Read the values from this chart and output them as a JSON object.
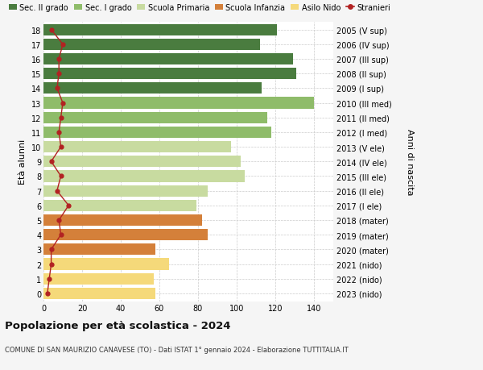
{
  "ages": [
    0,
    1,
    2,
    3,
    4,
    5,
    6,
    7,
    8,
    9,
    10,
    11,
    12,
    13,
    14,
    15,
    16,
    17,
    18
  ],
  "right_labels": [
    "2023 (nido)",
    "2022 (nido)",
    "2021 (nido)",
    "2020 (mater)",
    "2019 (mater)",
    "2018 (mater)",
    "2017 (I ele)",
    "2016 (II ele)",
    "2015 (III ele)",
    "2014 (IV ele)",
    "2013 (V ele)",
    "2012 (I med)",
    "2011 (II med)",
    "2010 (III med)",
    "2009 (I sup)",
    "2008 (II sup)",
    "2007 (III sup)",
    "2006 (IV sup)",
    "2005 (V sup)"
  ],
  "bar_values": [
    58,
    57,
    65,
    58,
    85,
    82,
    79,
    85,
    104,
    102,
    97,
    118,
    116,
    140,
    113,
    131,
    129,
    112,
    121
  ],
  "bar_colors": [
    "#f5d97a",
    "#f5d97a",
    "#f5d97a",
    "#d4803a",
    "#d4803a",
    "#d4803a",
    "#c8dba0",
    "#c8dba0",
    "#c8dba0",
    "#c8dba0",
    "#c8dba0",
    "#8fbc6a",
    "#8fbc6a",
    "#8fbc6a",
    "#4a7c3f",
    "#4a7c3f",
    "#4a7c3f",
    "#4a7c3f",
    "#4a7c3f"
  ],
  "stranieri_values": [
    2,
    3,
    4,
    4,
    9,
    8,
    13,
    7,
    9,
    4,
    9,
    8,
    9,
    10,
    7,
    8,
    8,
    10,
    4
  ],
  "stranieri_color": "#b22222",
  "legend_labels": [
    "Sec. II grado",
    "Sec. I grado",
    "Scuola Primaria",
    "Scuola Infanzia",
    "Asilo Nido",
    "Stranieri"
  ],
  "legend_colors": [
    "#4a7c3f",
    "#8fbc6a",
    "#c8dba0",
    "#d4803a",
    "#f5d97a",
    "#b22222"
  ],
  "title": "Popolazione per età scolastica - 2024",
  "subtitle": "COMUNE DI SAN MAURIZIO CANAVESE (TO) - Dati ISTAT 1° gennaio 2024 - Elaborazione TUTTITALIA.IT",
  "ylabel_left": "Età alunni",
  "ylabel_right": "Anni di nascita",
  "xlim": [
    0,
    150
  ],
  "xticks": [
    0,
    20,
    40,
    60,
    80,
    100,
    120,
    140
  ],
  "background_color": "#f5f5f5",
  "bar_background_color": "#ffffff",
  "grid_color": "#cccccc"
}
